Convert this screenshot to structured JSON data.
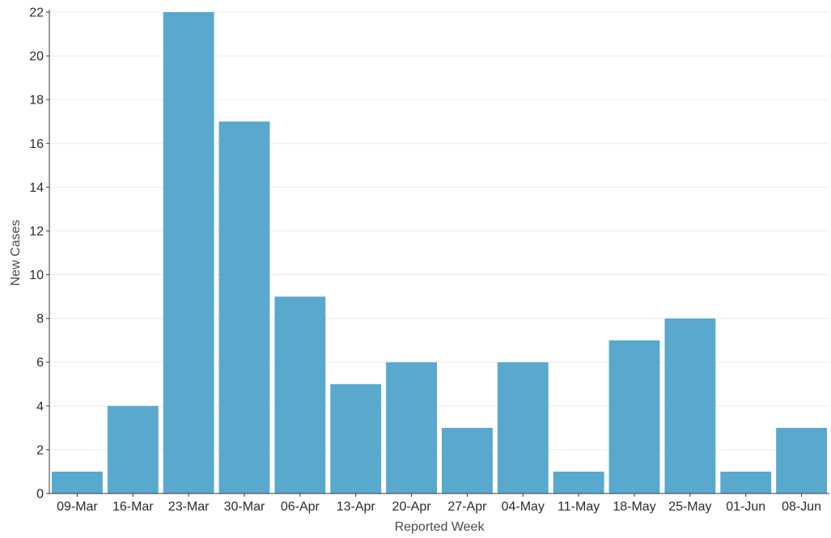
{
  "chart_data": {
    "type": "bar",
    "categories": [
      "09-Mar",
      "16-Mar",
      "23-Mar",
      "30-Mar",
      "06-Apr",
      "13-Apr",
      "20-Apr",
      "27-Apr",
      "04-May",
      "11-May",
      "18-May",
      "25-May",
      "01-Jun",
      "08-Jun"
    ],
    "values": [
      1,
      4,
      22,
      17,
      9,
      5,
      6,
      3,
      6,
      1,
      7,
      8,
      1,
      3
    ],
    "xlabel": "Reported Week",
    "ylabel": "New Cases",
    "ylim": [
      0,
      22
    ],
    "yticks": [
      0,
      2,
      4,
      6,
      8,
      10,
      12,
      14,
      16,
      18,
      20,
      22
    ],
    "grid": true,
    "bar_color": "#58a9cd"
  }
}
